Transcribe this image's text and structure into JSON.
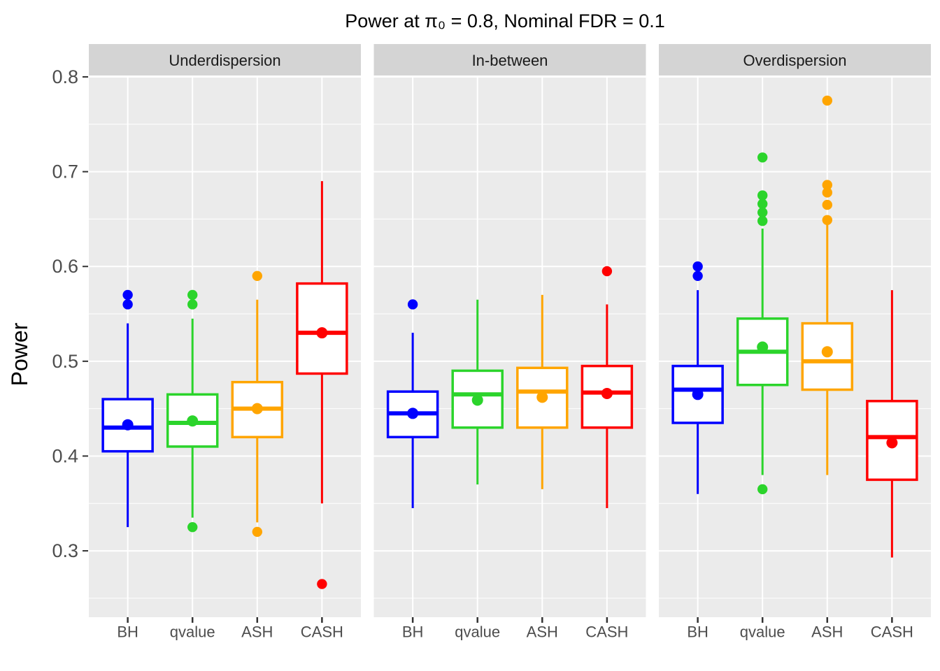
{
  "title": "Power at π₀ = 0.8, Nominal FDR = 0.1",
  "y_axis": {
    "label": "Power",
    "ticks": [
      "0.8",
      "0.7",
      "0.6",
      "0.5",
      "0.4",
      "0.3"
    ],
    "tick_values": [
      0.8,
      0.7,
      0.6,
      0.5,
      0.4,
      0.3
    ],
    "minor_tick_values": [
      0.75,
      0.65,
      0.55,
      0.45,
      0.35,
      0.25
    ],
    "range_top": 0.8,
    "range_bottom": 0.23
  },
  "x_axis": {
    "categories": [
      "BH",
      "qvalue",
      "ASH",
      "CASH"
    ]
  },
  "colors": {
    "BH": "#0000FF",
    "qvalue": "#2BD42B",
    "ASH": "#FFA500",
    "CASH": "#FF0000",
    "panel_bg": "#EBEBEB",
    "strip_bg": "#D4D4D4",
    "grid": "#FFFFFF",
    "tick_mark": "#333333",
    "tick_label": "#4D4D4D",
    "strip_text": "#1A1A1A",
    "title_text": "#000000"
  },
  "chart_data": {
    "type": "boxplot",
    "title": "Power at π₀ = 0.8, Nominal FDR = 0.1",
    "ylabel": "Power",
    "ylim": [
      0.23,
      0.8
    ],
    "grid": "major-and-minor-horizontal-white-on-gray",
    "legend": "none",
    "categories": [
      "BH",
      "qvalue",
      "ASH",
      "CASH"
    ],
    "facets": [
      {
        "label": "Underdispersion",
        "boxes": [
          {
            "method": "BH",
            "whisker_low": 0.325,
            "q1": 0.405,
            "median": 0.43,
            "q3": 0.46,
            "whisker_high": 0.54,
            "mean": 0.433,
            "outliers": [
              0.57,
              0.56
            ]
          },
          {
            "method": "qvalue",
            "whisker_low": 0.335,
            "q1": 0.41,
            "median": 0.435,
            "q3": 0.465,
            "whisker_high": 0.545,
            "mean": 0.437,
            "outliers": [
              0.57,
              0.56,
              0.325
            ]
          },
          {
            "method": "ASH",
            "whisker_low": 0.33,
            "q1": 0.42,
            "median": 0.45,
            "q3": 0.478,
            "whisker_high": 0.565,
            "mean": 0.45,
            "outliers": [
              0.59,
              0.32
            ]
          },
          {
            "method": "CASH",
            "whisker_low": 0.35,
            "q1": 0.487,
            "median": 0.53,
            "q3": 0.582,
            "whisker_high": 0.69,
            "mean": 0.53,
            "outliers": [
              0.265
            ]
          }
        ]
      },
      {
        "label": "In-between",
        "boxes": [
          {
            "method": "BH",
            "whisker_low": 0.345,
            "q1": 0.42,
            "median": 0.445,
            "q3": 0.468,
            "whisker_high": 0.53,
            "mean": 0.445,
            "outliers": [
              0.56
            ]
          },
          {
            "method": "qvalue",
            "whisker_low": 0.37,
            "q1": 0.43,
            "median": 0.465,
            "q3": 0.49,
            "whisker_high": 0.565,
            "mean": 0.459,
            "outliers": []
          },
          {
            "method": "ASH",
            "whisker_low": 0.365,
            "q1": 0.43,
            "median": 0.468,
            "q3": 0.493,
            "whisker_high": 0.57,
            "mean": 0.462,
            "outliers": []
          },
          {
            "method": "CASH",
            "whisker_low": 0.345,
            "q1": 0.43,
            "median": 0.467,
            "q3": 0.495,
            "whisker_high": 0.56,
            "mean": 0.466,
            "outliers": [
              0.595
            ]
          }
        ]
      },
      {
        "label": "Overdispersion",
        "boxes": [
          {
            "method": "BH",
            "whisker_low": 0.36,
            "q1": 0.435,
            "median": 0.47,
            "q3": 0.495,
            "whisker_high": 0.575,
            "mean": 0.465,
            "outliers": [
              0.6,
              0.59
            ]
          },
          {
            "method": "qvalue",
            "whisker_low": 0.38,
            "q1": 0.475,
            "median": 0.51,
            "q3": 0.545,
            "whisker_high": 0.64,
            "mean": 0.515,
            "outliers": [
              0.715,
              0.675,
              0.666,
              0.657,
              0.648,
              0.365
            ]
          },
          {
            "method": "ASH",
            "whisker_low": 0.38,
            "q1": 0.47,
            "median": 0.5,
            "q3": 0.54,
            "whisker_high": 0.645,
            "mean": 0.51,
            "outliers": [
              0.775,
              0.686,
              0.678,
              0.665,
              0.649
            ]
          },
          {
            "method": "CASH",
            "whisker_low": 0.293,
            "q1": 0.375,
            "median": 0.42,
            "q3": 0.458,
            "whisker_high": 0.575,
            "mean": 0.414,
            "outliers": []
          }
        ]
      }
    ]
  }
}
